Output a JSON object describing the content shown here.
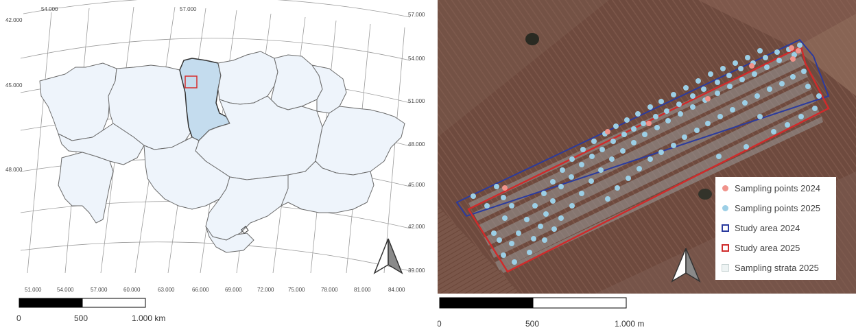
{
  "left_map": {
    "top_coords": [
      "54.000",
      "57.000"
    ],
    "left_coords": [
      "42.000",
      "45.000",
      "48.000"
    ],
    "right_coords": [
      "57.000",
      "54.000",
      "51.000",
      "48.000",
      "45.000",
      "42.000",
      "39.000"
    ],
    "bottom_coords": [
      "51.000",
      "54.000",
      "57.000",
      "60.000",
      "63.000",
      "66.000",
      "69.000",
      "72.000",
      "75.000",
      "78.000",
      "81.000",
      "84.000"
    ],
    "scale": {
      "tick0": "0",
      "tick1": "500",
      "tick2": "1.000 km"
    },
    "colors": {
      "highlight": "#c4dcee",
      "region": "#eef4fb",
      "study_box": "#d62f2f"
    }
  },
  "right_map": {
    "scale": {
      "tick0": "0",
      "tick1": "500",
      "tick2": "1.000 m"
    },
    "legend": [
      {
        "label": "Sampling points 2024",
        "symbol": "dot",
        "color": "#f0938b"
      },
      {
        "label": "Sampling points 2025",
        "symbol": "dot",
        "color": "#9ccfe6"
      },
      {
        "label": "Study area 2024",
        "symbol": "outline",
        "color": "#2b3b9e"
      },
      {
        "label": "Study area 2025",
        "symbol": "outline",
        "color": "#cf2b2b"
      },
      {
        "label": "Sampling strata 2025",
        "symbol": "fill",
        "color": "#eef4f4"
      }
    ]
  }
}
